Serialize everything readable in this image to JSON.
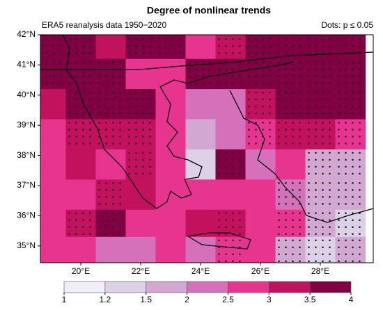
{
  "map": {
    "title": "Degree of nonlinear trends",
    "subtitle": "ERA5 reanalysis data 1950−2020",
    "note": "Dots: p ≤ 0.05",
    "lat_ticks": [
      {
        "value": 42,
        "label": "42°N"
      },
      {
        "value": 41,
        "label": "41°N"
      },
      {
        "value": 40,
        "label": "40°N"
      },
      {
        "value": 39,
        "label": "39°N"
      },
      {
        "value": 38,
        "label": "38°N"
      },
      {
        "value": 37,
        "label": "37°N"
      },
      {
        "value": 36,
        "label": "36°N"
      },
      {
        "value": 35,
        "label": "35°N"
      }
    ],
    "lon_ticks": [
      {
        "value": 20,
        "label": "20°E"
      },
      {
        "value": 22,
        "label": "22°E"
      },
      {
        "value": 24,
        "label": "24°E"
      },
      {
        "value": 26,
        "label": "26°E"
      },
      {
        "value": 28,
        "label": "28°E"
      }
    ],
    "lons": [
      19,
      20,
      21,
      22,
      23,
      24,
      25,
      26,
      27,
      28,
      29
    ],
    "lats": [
      41.7,
      40.7,
      39.7,
      38.7,
      37.7,
      36.7,
      35.7,
      34.8
    ],
    "values": [
      [
        3.7,
        3.6,
        3.2,
        3.5,
        3.6,
        2.8,
        3.3,
        3.7,
        3.8,
        3.8,
        3.8
      ],
      [
        3.6,
        3.7,
        3.6,
        2.7,
        2.5,
        3.5,
        3.6,
        3.7,
        3.7,
        3.7,
        3.8
      ],
      [
        3.2,
        3.6,
        3.7,
        3.5,
        2.6,
        2.0,
        2.3,
        3.4,
        3.6,
        3.7,
        3.6
      ],
      [
        2.8,
        3.4,
        3.3,
        3.3,
        2.7,
        1.5,
        2.3,
        2.9,
        3.3,
        3.0,
        2.9
      ],
      [
        2.6,
        3.0,
        2.8,
        3.2,
        2.5,
        1.3,
        3.5,
        2.2,
        2.5,
        1.8,
        1.7
      ],
      [
        2.7,
        2.6,
        3.3,
        3.0,
        2.8,
        2.7,
        2.8,
        2.6,
        2.0,
        1.6,
        1.5
      ],
      [
        2.6,
        3.4,
        3.5,
        2.8,
        2.8,
        3.0,
        3.1,
        2.8,
        2.5,
        1.5,
        1.4
      ],
      [
        2.5,
        2.9,
        2.4,
        2.2,
        2.8,
        2.4,
        2.9,
        2.5,
        1.8,
        1.3,
        1.5
      ]
    ],
    "significant": [
      [
        true,
        true,
        false,
        true,
        true,
        false,
        true,
        true,
        true,
        true,
        true
      ],
      [
        true,
        true,
        true,
        false,
        false,
        true,
        true,
        true,
        true,
        true,
        true
      ],
      [
        false,
        true,
        true,
        true,
        false,
        false,
        false,
        true,
        true,
        true,
        true
      ],
      [
        false,
        true,
        true,
        true,
        false,
        false,
        false,
        true,
        true,
        true,
        true
      ],
      [
        false,
        false,
        false,
        true,
        false,
        false,
        true,
        false,
        false,
        true,
        true
      ],
      [
        false,
        false,
        true,
        false,
        false,
        false,
        false,
        false,
        true,
        true,
        true
      ],
      [
        false,
        true,
        true,
        false,
        false,
        false,
        true,
        false,
        true,
        true,
        true
      ],
      [
        false,
        false,
        false,
        false,
        false,
        false,
        true,
        false,
        true,
        true,
        true
      ]
    ],
    "colorbar_ticks": [
      1,
      1.2,
      1.5,
      2,
      2.5,
      3,
      3.5,
      4
    ],
    "colors": [
      "#f0eef6",
      "#dcd2e7",
      "#d2a8d2",
      "#d571bb",
      "#e6348f",
      "#c2125e",
      "#800043"
    ]
  }
}
